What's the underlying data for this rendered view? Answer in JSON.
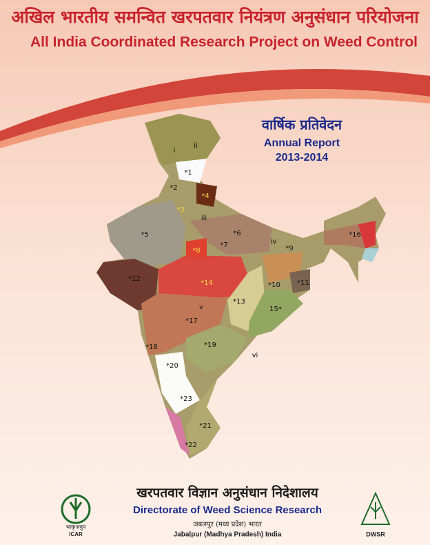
{
  "header": {
    "hindi_title": "अखिल भारतीय समन्वित खरपतवार नियंत्रण अनुसंधान परियोजना",
    "title": "All India Coordinated Research Project on Weed Control"
  },
  "report": {
    "hindi_title": "वार्षिक प्रतिवेदन",
    "title": "Annual Report",
    "year": "2013-2014"
  },
  "map": {
    "labels": [
      "i",
      "ii",
      "*1",
      "*2",
      "*4",
      "*3",
      "iii",
      "*5",
      "*6",
      "iv",
      "*9",
      "*16",
      "*8",
      "*7",
      "*12",
      "*14",
      "*10",
      "*11",
      "*13",
      "15*",
      "v",
      "*17",
      "*18",
      "*19",
      "vi",
      "*20",
      "*23",
      "*21",
      "*22"
    ]
  },
  "footer": {
    "hindi_name": "खरपतवार विज्ञान अनुसंधान निदेशालय",
    "name": "Directorate of Weed Science Research",
    "hindi_location": "जबलपुर (मध्य प्रदेश) भारत",
    "location": "Jabalpur (Madhya Pradesh) India"
  },
  "logos": {
    "icar_hindi": "भाकृअनुप",
    "icar": "ICAR",
    "dwsr": "DWSR"
  }
}
